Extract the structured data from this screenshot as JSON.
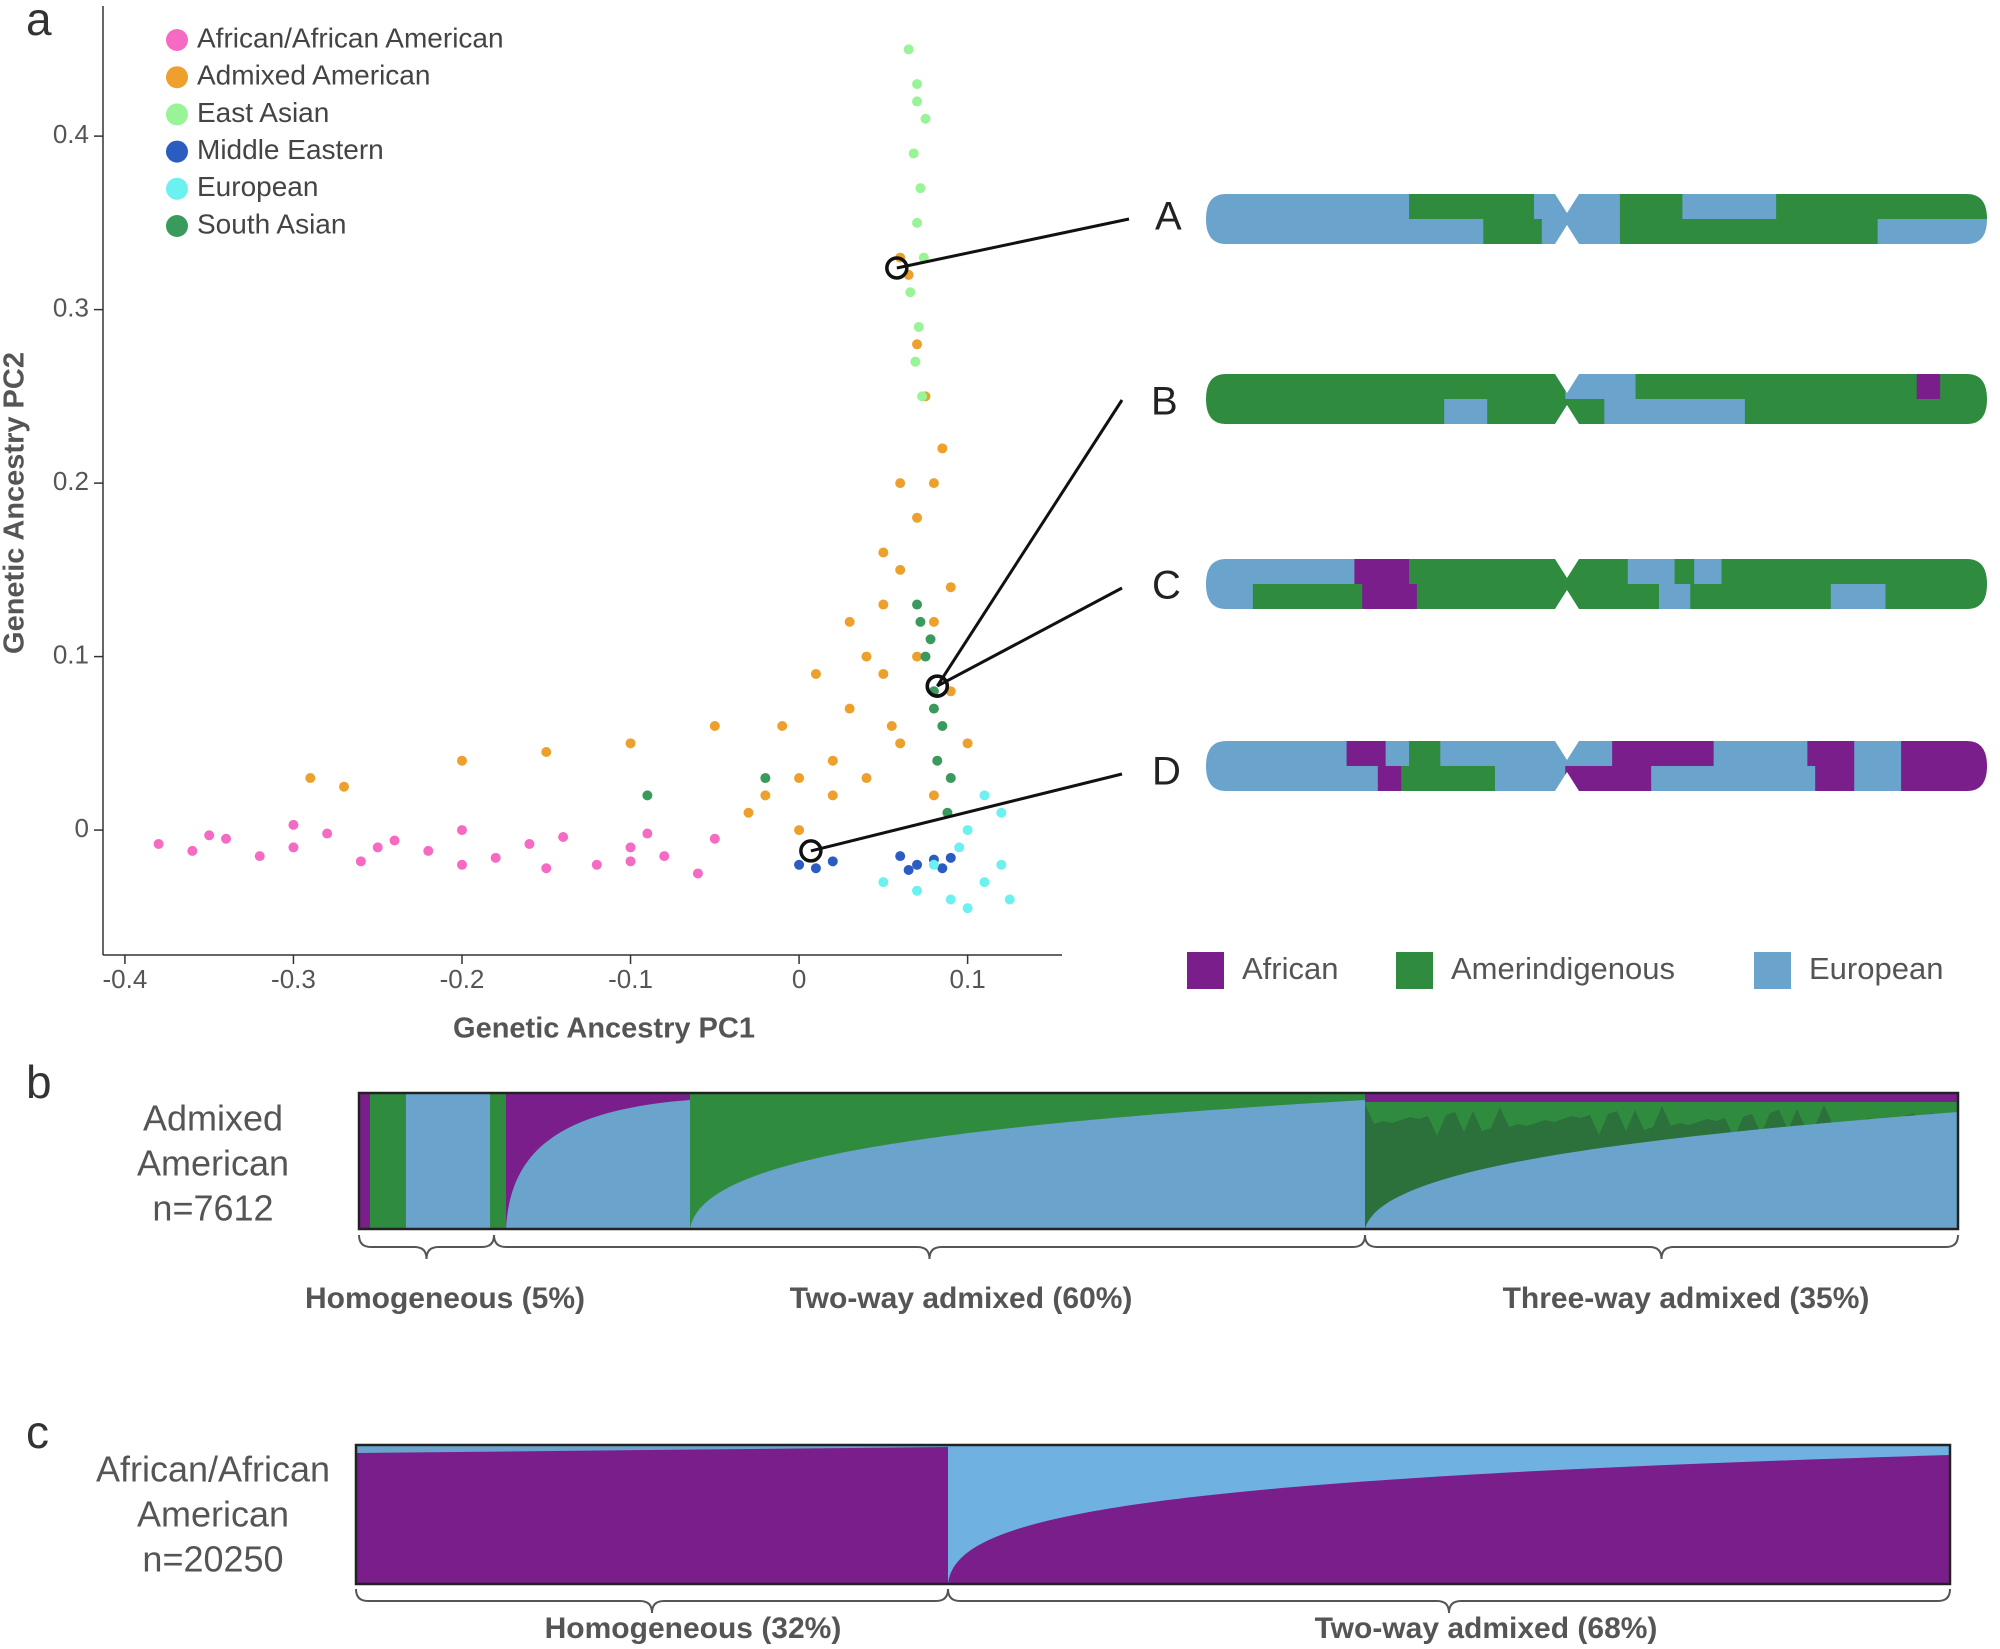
{
  "chart_data": {
    "type": "scatter",
    "x_label": "Genetic Ancestry PC1",
    "y_label": "Genetic Ancestry PC2",
    "xlim": [
      -0.413,
      0.156
    ],
    "ylim": [
      -0.072,
      0.475
    ],
    "xticks": [
      -0.4,
      -0.3,
      -0.2,
      -0.1,
      0,
      0.1
    ],
    "yticks": [
      0,
      0.1,
      0.2,
      0.3,
      0.4
    ],
    "legend": "upper left",
    "series": [
      {
        "name": "African/African American",
        "color": "#f56bc3",
        "x": [
          -0.38,
          -0.36,
          -0.34,
          -0.32,
          -0.3,
          -0.28,
          -0.26,
          -0.24,
          -0.22,
          -0.2,
          -0.18,
          -0.16,
          -0.14,
          -0.12,
          -0.1,
          -0.08,
          -0.06,
          -0.05,
          -0.35,
          -0.25,
          -0.15,
          -0.09,
          -0.3,
          -0.2,
          -0.1
        ],
        "values": [
          -0.008,
          -0.012,
          -0.005,
          -0.015,
          -0.01,
          -0.002,
          -0.018,
          -0.006,
          -0.012,
          0.0,
          -0.016,
          -0.008,
          -0.004,
          -0.02,
          -0.01,
          -0.015,
          -0.025,
          -0.005,
          -0.003,
          -0.01,
          -0.022,
          -0.002,
          0.003,
          -0.02,
          -0.018
        ]
      },
      {
        "name": "Admixed American",
        "color": "#eda12c",
        "x": [
          -0.29,
          -0.27,
          -0.2,
          -0.15,
          -0.1,
          -0.05,
          -0.03,
          0,
          0.02,
          0.03,
          0.04,
          0.05,
          0.06,
          0.07,
          0.08,
          0.09,
          0.1,
          0.05,
          0.06,
          0.07,
          0.08,
          0.085,
          0.075,
          0.07,
          0.065,
          0.06,
          0.055,
          0.08,
          0.09,
          0,
          0.02,
          -0.02,
          0.04,
          0.01,
          -0.01,
          0.06,
          0.05,
          0.03
        ],
        "values": [
          0.03,
          0.025,
          0.04,
          0.045,
          0.05,
          0.06,
          0.01,
          0.0,
          0.02,
          0.07,
          0.1,
          0.13,
          0.15,
          0.18,
          0.2,
          0.14,
          0.05,
          0.09,
          0.05,
          0.1,
          0.12,
          0.22,
          0.25,
          0.28,
          0.32,
          0.33,
          0.06,
          0.02,
          0.08,
          0.03,
          0.04,
          0.02,
          0.03,
          0.09,
          0.06,
          0.2,
          0.16,
          0.12
        ]
      },
      {
        "name": "East Asian",
        "color": "#98f497",
        "x": [
          0.065,
          0.07,
          0.075,
          0.068,
          0.072,
          0.07,
          0.074,
          0.066,
          0.071,
          0.069,
          0.073,
          0.07
        ],
        "values": [
          0.45,
          0.43,
          0.41,
          0.39,
          0.37,
          0.35,
          0.33,
          0.31,
          0.29,
          0.27,
          0.25,
          0.42
        ]
      },
      {
        "name": "Middle Eastern",
        "color": "#2b5cc2",
        "x": [
          0,
          0.01,
          0.02,
          0.06,
          0.07,
          0.08,
          0.09,
          0.065,
          0.085
        ],
        "values": [
          -0.02,
          -0.022,
          -0.018,
          -0.015,
          -0.02,
          -0.017,
          -0.016,
          -0.023,
          -0.022
        ]
      },
      {
        "name": "European",
        "color": "#6cf1f1",
        "x": [
          0.05,
          0.07,
          0.09,
          0.1,
          0.11,
          0.12,
          0.125,
          0.1,
          0.12,
          0.08,
          0.11,
          0.095
        ],
        "values": [
          -0.03,
          -0.035,
          -0.04,
          -0.045,
          -0.03,
          -0.02,
          -0.04,
          0.0,
          0.01,
          -0.02,
          0.02,
          -0.01
        ]
      },
      {
        "name": "South Asian",
        "color": "#3a9a5b",
        "x": [
          0.07,
          0.075,
          0.08,
          0.085,
          0.09,
          0.078,
          0.082,
          0.088,
          0.072,
          0.08,
          -0.09,
          -0.02
        ],
        "values": [
          0.13,
          0.1,
          0.08,
          0.06,
          0.03,
          0.11,
          0.04,
          0.01,
          0.12,
          0.07,
          0.02,
          0.03
        ]
      }
    ],
    "annotations": [
      {
        "label": "A",
        "x": 0.058,
        "y": 0.324
      },
      {
        "label": "B",
        "x": 0.082,
        "y": 0.083
      },
      {
        "label": "C",
        "x": 0.082,
        "y": 0.083
      },
      {
        "label": "D",
        "x": 0.007,
        "y": -0.012
      }
    ]
  },
  "figure": {
    "panel_labels": [
      "a",
      "b",
      "c"
    ],
    "chromosome_legend": [
      {
        "name": "African",
        "color": "#7a1e8c"
      },
      {
        "name": "Amerindigenous",
        "color": "#2f8c3f"
      },
      {
        "name": "European",
        "color": "#6aa4cc"
      }
    ],
    "panel_b": {
      "row_label": [
        "Admixed",
        "American",
        "n=7612"
      ],
      "groups": [
        "Homogeneous (5%)",
        "Two-way admixed (60%)",
        "Three-way admixed (35%)"
      ]
    },
    "panel_c": {
      "row_label": [
        "African/African",
        "American",
        "n=20250"
      ],
      "groups": [
        "Homogeneous (32%)",
        "Two-way admixed (68%)"
      ]
    }
  }
}
